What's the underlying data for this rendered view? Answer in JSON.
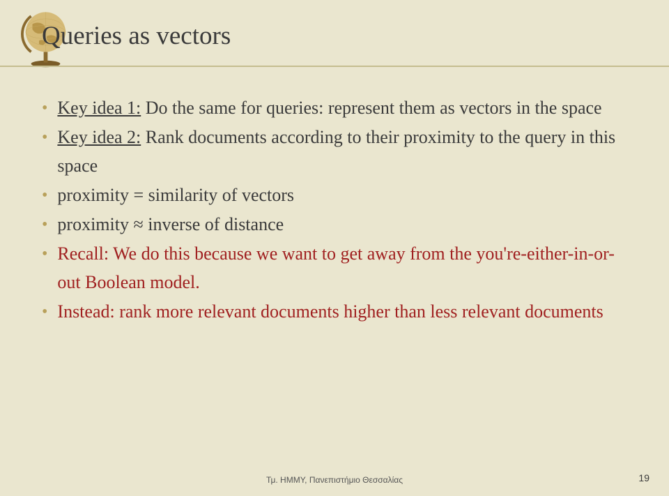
{
  "title": "Queries as vectors",
  "bullets": [
    {
      "keyIdea": "Key idea 1:",
      "rest": " Do the same for queries: represent them as vectors in the space",
      "color": "normal"
    },
    {
      "keyIdea": "Key idea 2:",
      "rest": " Rank documents according to their proximity to the query in this space",
      "color": "normal"
    },
    {
      "keyIdea": "",
      "rest": "proximity = similarity of vectors",
      "color": "normal"
    },
    {
      "keyIdea": "",
      "rest": "proximity ≈ inverse of distance",
      "color": "normal"
    },
    {
      "keyIdea": "",
      "rest": "Recall: We do this because we want to get away from the you're-either-in-or-out Boolean model.",
      "color": "recall"
    },
    {
      "keyIdea": "",
      "rest": "Instead: rank more relevant documents higher than less relevant documents",
      "color": "recall"
    }
  ],
  "footer": "Τμ. ΗΜΜΥ, Πανεπιστήμιο Θεσσαλίας",
  "pageNum": "19",
  "globe": {
    "sphere": "#d6bb78",
    "land": "#b8964a",
    "stand": "#8a6a2f",
    "base": "#7a5c28"
  }
}
